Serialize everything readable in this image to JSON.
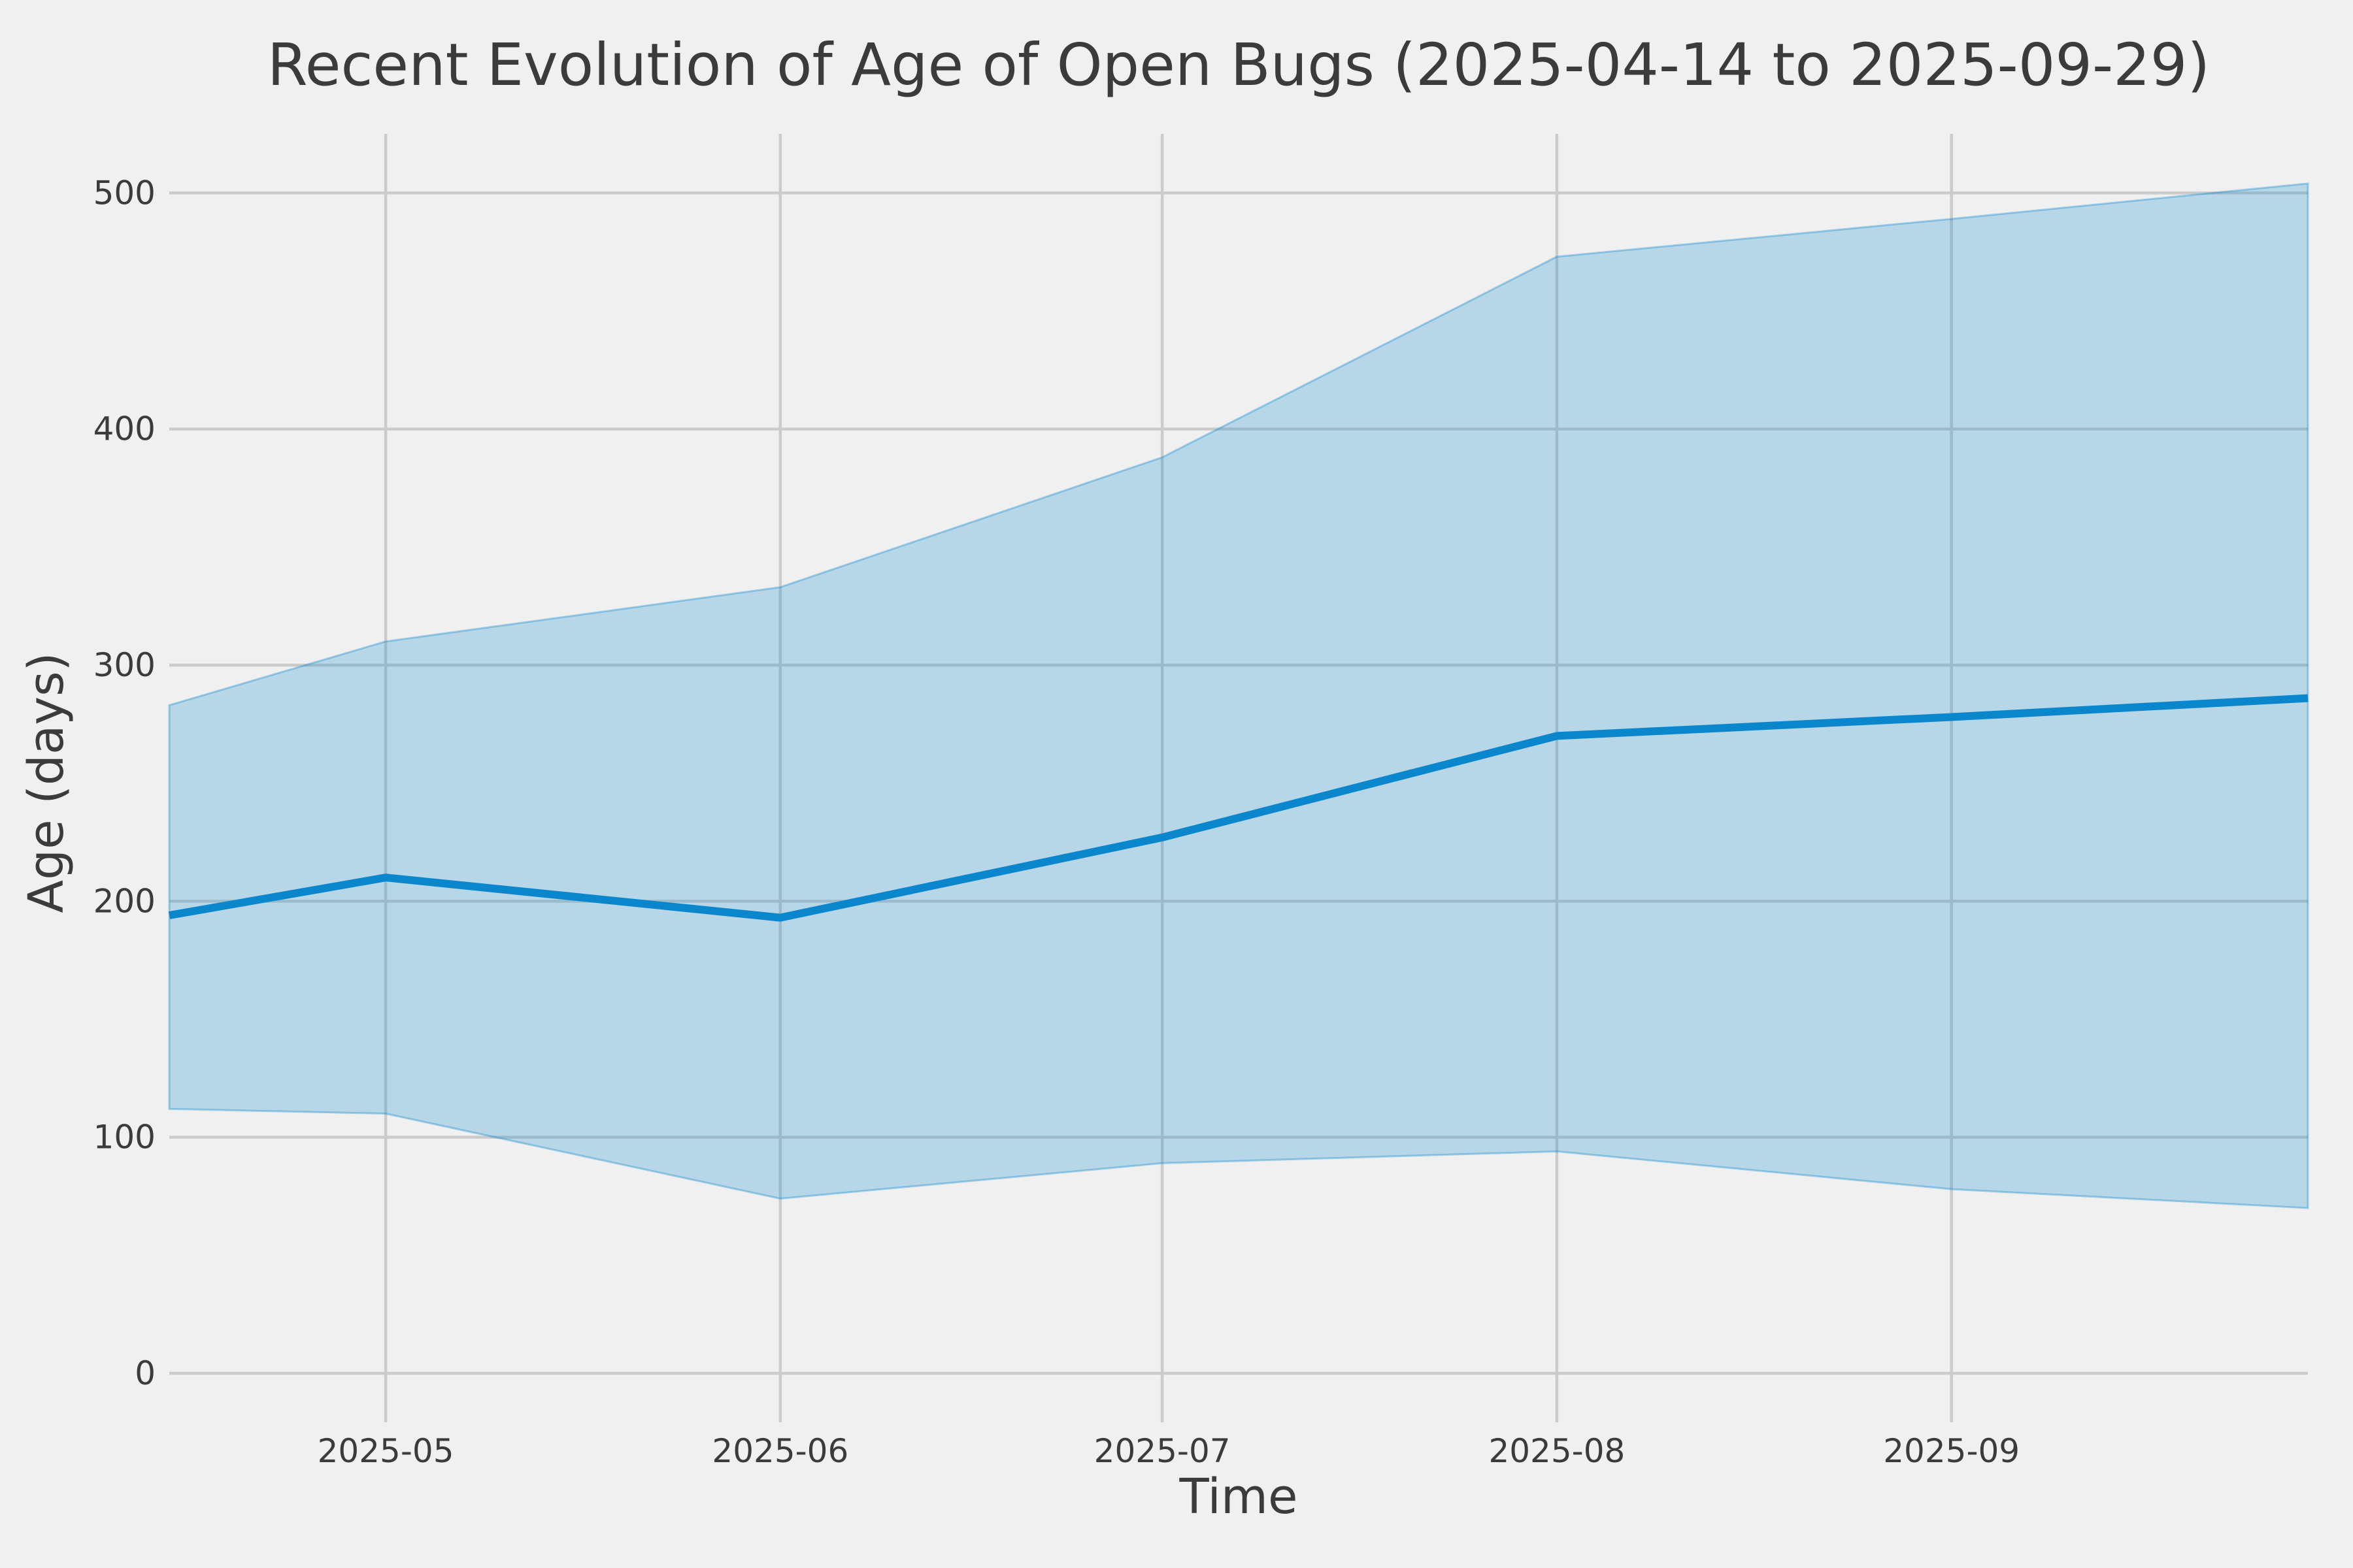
{
  "chart_data": {
    "type": "line",
    "title": "Recent Evolution of Age of Open Bugs (2025-04-14 to 2025-09-29)",
    "xlabel": "Time",
    "ylabel": "Age (days)",
    "x_start": "2025-04-14",
    "x_end": "2025-09-29",
    "ylim": [
      0,
      525
    ],
    "yticks": [
      0,
      100,
      200,
      300,
      400,
      500
    ],
    "xticks": [
      {
        "date": "2025-05-01",
        "label": "2025-05"
      },
      {
        "date": "2025-06-01",
        "label": "2025-06"
      },
      {
        "date": "2025-07-01",
        "label": "2025-07"
      },
      {
        "date": "2025-08-01",
        "label": "2025-08"
      },
      {
        "date": "2025-09-01",
        "label": "2025-09"
      }
    ],
    "grid": true,
    "legend": false,
    "colors": {
      "background": "#f0f0f0",
      "grid": "#cbcbcb",
      "text": "#3b3b3b",
      "line": "#0a86cd",
      "band_fill_opacity": 0.25,
      "band_edge_opacity": 0.35
    },
    "series": [
      {
        "name": "median-age",
        "type": "line",
        "points": [
          [
            "2025-04-14",
            194
          ],
          [
            "2025-05-01",
            210
          ],
          [
            "2025-06-01",
            193
          ],
          [
            "2025-07-01",
            227
          ],
          [
            "2025-08-01",
            270
          ],
          [
            "2025-09-01",
            278
          ],
          [
            "2025-09-29",
            286
          ]
        ]
      },
      {
        "name": "age-range-band",
        "type": "band",
        "points": [
          [
            "2025-04-14",
            112,
            283
          ],
          [
            "2025-05-01",
            110,
            310
          ],
          [
            "2025-06-01",
            74,
            333
          ],
          [
            "2025-07-01",
            89,
            388
          ],
          [
            "2025-08-01",
            94,
            473
          ],
          [
            "2025-09-01",
            78,
            489
          ],
          [
            "2025-09-29",
            70,
            504
          ]
        ]
      }
    ]
  }
}
